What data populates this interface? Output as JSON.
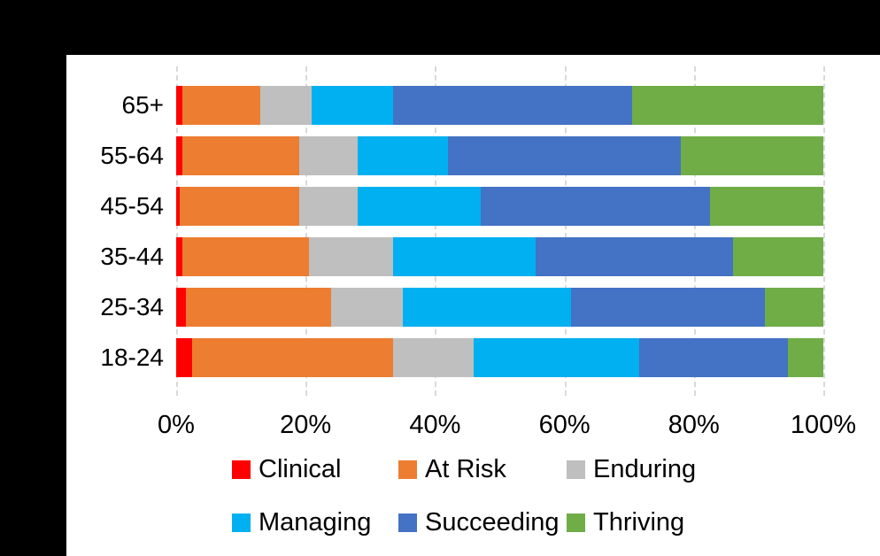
{
  "chart_data": {
    "type": "bar",
    "orientation": "horizontal",
    "stacked": true,
    "title": "",
    "xlabel": "",
    "ylabel": "",
    "categories": [
      "65+",
      "55-64",
      "45-54",
      "35-44",
      "25-34",
      "18-24"
    ],
    "series": [
      {
        "name": "Clinical",
        "color": "#FF0000",
        "values": [
          1,
          1,
          0.5,
          1,
          1.5,
          2.5
        ]
      },
      {
        "name": "At Risk",
        "color": "#ED7D31",
        "values": [
          12,
          18,
          18.5,
          19.5,
          22.5,
          31
        ]
      },
      {
        "name": "Enduring",
        "color": "#BFBFBF",
        "values": [
          8,
          9,
          9,
          13,
          11,
          12.5
        ]
      },
      {
        "name": "Managing",
        "color": "#00B0F0",
        "values": [
          12.5,
          14,
          19,
          22,
          26,
          25.5
        ]
      },
      {
        "name": "Succeeding",
        "color": "#4472C4",
        "values": [
          37,
          36,
          35.5,
          30.5,
          30,
          23
        ]
      },
      {
        "name": "Thriving",
        "color": "#70AD47",
        "values": [
          29.5,
          22,
          17.5,
          14,
          9,
          5.5
        ]
      }
    ],
    "x_axis": {
      "min": 0,
      "max": 100,
      "tick_labels": [
        "0%",
        "20%",
        "40%",
        "60%",
        "80%",
        "100%"
      ]
    },
    "gridlines": {
      "shown": true,
      "style": "dashed",
      "color": "#D9D9D9"
    },
    "legend": {
      "position": "bottom",
      "rows": [
        [
          "Clinical",
          "At Risk",
          "Enduring"
        ],
        [
          "Managing",
          "Succeeding",
          "Thriving"
        ]
      ]
    }
  },
  "colors": {
    "background": "#000000",
    "panel": "#FFFFFF",
    "text": "#000000"
  }
}
